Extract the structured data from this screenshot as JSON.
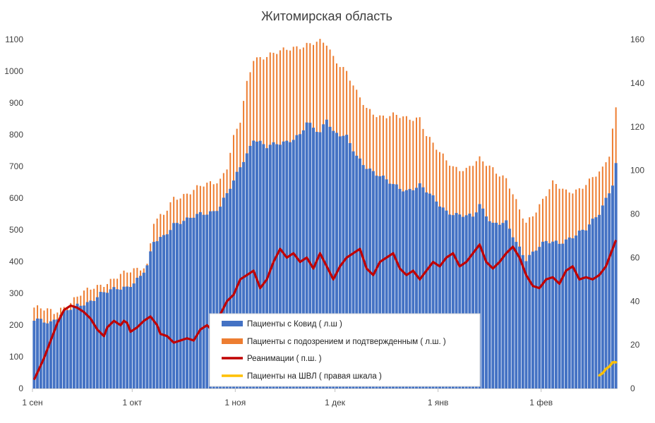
{
  "chart_data": {
    "type": "bar",
    "title": "Житомирская область",
    "left_axis": {
      "min": 0,
      "max": 1100,
      "ticks": [
        "0",
        "100",
        "200",
        "300",
        "400",
        "500",
        "600",
        "700",
        "800",
        "900",
        "1000",
        "1100"
      ]
    },
    "right_axis": {
      "min": 0,
      "max": 160,
      "ticks": [
        "0",
        "20",
        "40",
        "60",
        "80",
        "100",
        "120",
        "140",
        "160"
      ]
    },
    "x_ticks": [
      {
        "label": "1 сен",
        "day": 0
      },
      {
        "label": "1 окт",
        "day": 30
      },
      {
        "label": "1 ноя",
        "day": 61
      },
      {
        "label": "1 дек",
        "day": 91
      },
      {
        "label": "1 янв",
        "day": 122
      },
      {
        "label": "1 фев",
        "day": 153
      }
    ],
    "day_count": 176,
    "series": [
      {
        "name": "Пациенты с Ковид ( л.ш )",
        "type": "bar",
        "axis": "left",
        "color": "#4472c4",
        "keypoints": [
          [
            0,
            215
          ],
          [
            5,
            210
          ],
          [
            8,
            235
          ],
          [
            12,
            255
          ],
          [
            16,
            270
          ],
          [
            20,
            300
          ],
          [
            24,
            310
          ],
          [
            28,
            320
          ],
          [
            32,
            355
          ],
          [
            34,
            385
          ],
          [
            36,
            460
          ],
          [
            39,
            480
          ],
          [
            42,
            520
          ],
          [
            46,
            530
          ],
          [
            50,
            550
          ],
          [
            54,
            560
          ],
          [
            56,
            575
          ],
          [
            60,
            650
          ],
          [
            62,
            700
          ],
          [
            64,
            740
          ],
          [
            66,
            790
          ],
          [
            70,
            760
          ],
          [
            73,
            770
          ],
          [
            76,
            780
          ],
          [
            80,
            800
          ],
          [
            82,
            835
          ],
          [
            86,
            805
          ],
          [
            88,
            855
          ],
          [
            90,
            810
          ],
          [
            92,
            800
          ],
          [
            94,
            790
          ],
          [
            97,
            730
          ],
          [
            100,
            700
          ],
          [
            104,
            670
          ],
          [
            108,
            640
          ],
          [
            112,
            625
          ],
          [
            116,
            640
          ],
          [
            120,
            600
          ],
          [
            124,
            560
          ],
          [
            128,
            545
          ],
          [
            132,
            540
          ],
          [
            134,
            580
          ],
          [
            138,
            520
          ],
          [
            142,
            520
          ],
          [
            145,
            460
          ],
          [
            148,
            410
          ],
          [
            151,
            440
          ],
          [
            154,
            460
          ],
          [
            158,
            460
          ],
          [
            162,
            480
          ],
          [
            166,
            500
          ],
          [
            170,
            555
          ],
          [
            172,
            600
          ],
          [
            174,
            645
          ],
          [
            175,
            705
          ]
        ]
      },
      {
        "name": "Пациенты с подозрением и подтвержденным ( л.ш. )",
        "type": "bar",
        "axis": "left",
        "color": "#ed7d31",
        "keypoints": [
          [
            0,
            255
          ],
          [
            6,
            240
          ],
          [
            10,
            265
          ],
          [
            14,
            295
          ],
          [
            18,
            320
          ],
          [
            22,
            335
          ],
          [
            26,
            355
          ],
          [
            30,
            375
          ],
          [
            34,
            390
          ],
          [
            36,
            525
          ],
          [
            39,
            545
          ],
          [
            42,
            600
          ],
          [
            46,
            615
          ],
          [
            50,
            635
          ],
          [
            54,
            650
          ],
          [
            56,
            660
          ],
          [
            58,
            700
          ],
          [
            60,
            790
          ],
          [
            62,
            840
          ],
          [
            64,
            960
          ],
          [
            66,
            1040
          ],
          [
            70,
            1050
          ],
          [
            74,
            1060
          ],
          [
            78,
            1075
          ],
          [
            82,
            1085
          ],
          [
            86,
            1090
          ],
          [
            88,
            1085
          ],
          [
            90,
            1045
          ],
          [
            94,
            1000
          ],
          [
            97,
            930
          ],
          [
            100,
            880
          ],
          [
            104,
            860
          ],
          [
            108,
            860
          ],
          [
            112,
            850
          ],
          [
            116,
            855
          ],
          [
            118,
            800
          ],
          [
            122,
            740
          ],
          [
            126,
            700
          ],
          [
            130,
            690
          ],
          [
            134,
            720
          ],
          [
            138,
            695
          ],
          [
            142,
            660
          ],
          [
            146,
            560
          ],
          [
            148,
            520
          ],
          [
            152,
            580
          ],
          [
            156,
            645
          ],
          [
            160,
            620
          ],
          [
            164,
            630
          ],
          [
            168,
            660
          ],
          [
            171,
            690
          ],
          [
            173,
            740
          ],
          [
            174,
            820
          ],
          [
            175,
            885
          ]
        ]
      },
      {
        "name": "Реанимации ( п.ш. )",
        "type": "line",
        "axis": "right",
        "color": "#c00000",
        "keypoints": [
          [
            0,
            4
          ],
          [
            3,
            14
          ],
          [
            5,
            22
          ],
          [
            7,
            30
          ],
          [
            9,
            36
          ],
          [
            11,
            38
          ],
          [
            13,
            37
          ],
          [
            15,
            35
          ],
          [
            17,
            32
          ],
          [
            19,
            27
          ],
          [
            21,
            24
          ],
          [
            22,
            28
          ],
          [
            24,
            31
          ],
          [
            26,
            29
          ],
          [
            27,
            31
          ],
          [
            28,
            30
          ],
          [
            29,
            26
          ],
          [
            31,
            28
          ],
          [
            33,
            31
          ],
          [
            35,
            33
          ],
          [
            37,
            29
          ],
          [
            38,
            25
          ],
          [
            40,
            24
          ],
          [
            42,
            21
          ],
          [
            44,
            22
          ],
          [
            46,
            23
          ],
          [
            48,
            22
          ],
          [
            50,
            27
          ],
          [
            52,
            29
          ],
          [
            54,
            26
          ],
          [
            56,
            34
          ],
          [
            58,
            40
          ],
          [
            60,
            43
          ],
          [
            62,
            50
          ],
          [
            64,
            52
          ],
          [
            66,
            54
          ],
          [
            68,
            46
          ],
          [
            70,
            50
          ],
          [
            72,
            58
          ],
          [
            74,
            64
          ],
          [
            76,
            60
          ],
          [
            78,
            62
          ],
          [
            80,
            58
          ],
          [
            82,
            60
          ],
          [
            84,
            55
          ],
          [
            86,
            62
          ],
          [
            88,
            56
          ],
          [
            90,
            50
          ],
          [
            92,
            56
          ],
          [
            94,
            60
          ],
          [
            96,
            62
          ],
          [
            98,
            64
          ],
          [
            100,
            55
          ],
          [
            102,
            52
          ],
          [
            104,
            58
          ],
          [
            106,
            60
          ],
          [
            108,
            62
          ],
          [
            110,
            55
          ],
          [
            112,
            52
          ],
          [
            114,
            54
          ],
          [
            116,
            50
          ],
          [
            118,
            54
          ],
          [
            120,
            58
          ],
          [
            122,
            56
          ],
          [
            124,
            60
          ],
          [
            126,
            62
          ],
          [
            128,
            56
          ],
          [
            130,
            58
          ],
          [
            132,
            62
          ],
          [
            134,
            66
          ],
          [
            136,
            58
          ],
          [
            138,
            55
          ],
          [
            140,
            58
          ],
          [
            142,
            62
          ],
          [
            144,
            65
          ],
          [
            146,
            60
          ],
          [
            148,
            52
          ],
          [
            150,
            47
          ],
          [
            152,
            46
          ],
          [
            154,
            50
          ],
          [
            156,
            51
          ],
          [
            158,
            48
          ],
          [
            160,
            54
          ],
          [
            162,
            56
          ],
          [
            164,
            50
          ],
          [
            166,
            51
          ],
          [
            168,
            50
          ],
          [
            170,
            52
          ],
          [
            172,
            56
          ],
          [
            174,
            64
          ],
          [
            175,
            68
          ]
        ]
      },
      {
        "name": "Пациенты на ШВЛ ( правая шкала )",
        "type": "line",
        "axis": "right",
        "color": "#ffc000",
        "keypoints": [
          [
            170,
            6
          ],
          [
            171,
            7
          ],
          [
            172,
            9
          ],
          [
            173,
            10
          ],
          [
            174,
            12
          ],
          [
            175,
            12
          ]
        ]
      }
    ]
  }
}
